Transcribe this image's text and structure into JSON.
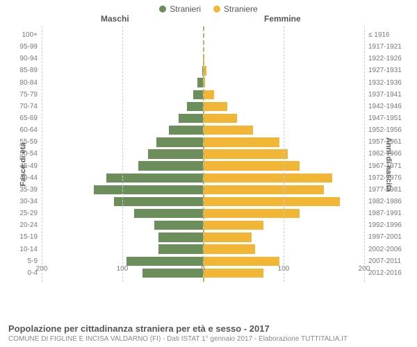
{
  "legend": {
    "male_label": "Stranieri",
    "female_label": "Straniere"
  },
  "headers": {
    "male": "Maschi",
    "female": "Femmine"
  },
  "axis_titles": {
    "left": "Fasce di età",
    "right": "Anni di nascita"
  },
  "colors": {
    "male": "#6b8e5a",
    "female": "#f2b636",
    "grid": "#cccccc",
    "center": "#b8b070",
    "background": "#ffffff"
  },
  "chart": {
    "type": "population-pyramid",
    "x_max": 200,
    "x_ticks": [
      200,
      100,
      0,
      100,
      200
    ],
    "bar_gap_pct": 22,
    "rows": [
      {
        "age": "100+",
        "birth": "≤ 1916",
        "m": 0,
        "f": 0
      },
      {
        "age": "95-99",
        "birth": "1917-1921",
        "m": 0,
        "f": 0
      },
      {
        "age": "90-94",
        "birth": "1922-1926",
        "m": 0,
        "f": 2
      },
      {
        "age": "85-89",
        "birth": "1927-1931",
        "m": 1,
        "f": 4
      },
      {
        "age": "80-84",
        "birth": "1932-1936",
        "m": 7,
        "f": 3
      },
      {
        "age": "75-79",
        "birth": "1937-1941",
        "m": 12,
        "f": 14
      },
      {
        "age": "70-74",
        "birth": "1942-1946",
        "m": 20,
        "f": 30
      },
      {
        "age": "65-69",
        "birth": "1947-1951",
        "m": 30,
        "f": 42
      },
      {
        "age": "60-64",
        "birth": "1952-1956",
        "m": 42,
        "f": 62
      },
      {
        "age": "55-59",
        "birth": "1957-1961",
        "m": 58,
        "f": 95
      },
      {
        "age": "50-54",
        "birth": "1962-1966",
        "m": 68,
        "f": 105
      },
      {
        "age": "45-49",
        "birth": "1967-1971",
        "m": 80,
        "f": 120
      },
      {
        "age": "40-44",
        "birth": "1972-1976",
        "m": 120,
        "f": 160
      },
      {
        "age": "35-39",
        "birth": "1977-1981",
        "m": 135,
        "f": 150
      },
      {
        "age": "30-34",
        "birth": "1982-1986",
        "m": 110,
        "f": 170
      },
      {
        "age": "25-29",
        "birth": "1987-1991",
        "m": 85,
        "f": 120
      },
      {
        "age": "20-24",
        "birth": "1992-1996",
        "m": 60,
        "f": 75
      },
      {
        "age": "15-19",
        "birth": "1997-2001",
        "m": 55,
        "f": 60
      },
      {
        "age": "10-14",
        "birth": "2002-2006",
        "m": 55,
        "f": 65
      },
      {
        "age": "5-9",
        "birth": "2007-2011",
        "m": 95,
        "f": 95
      },
      {
        "age": "0-4",
        "birth": "2012-2016",
        "m": 75,
        "f": 75
      }
    ]
  },
  "footer": {
    "title": "Popolazione per cittadinanza straniera per età e sesso - 2017",
    "subtitle": "COMUNE DI FIGLINE E INCISA VALDARNO (FI) - Dati ISTAT 1° gennaio 2017 - Elaborazione TUTTITALIA.IT"
  }
}
